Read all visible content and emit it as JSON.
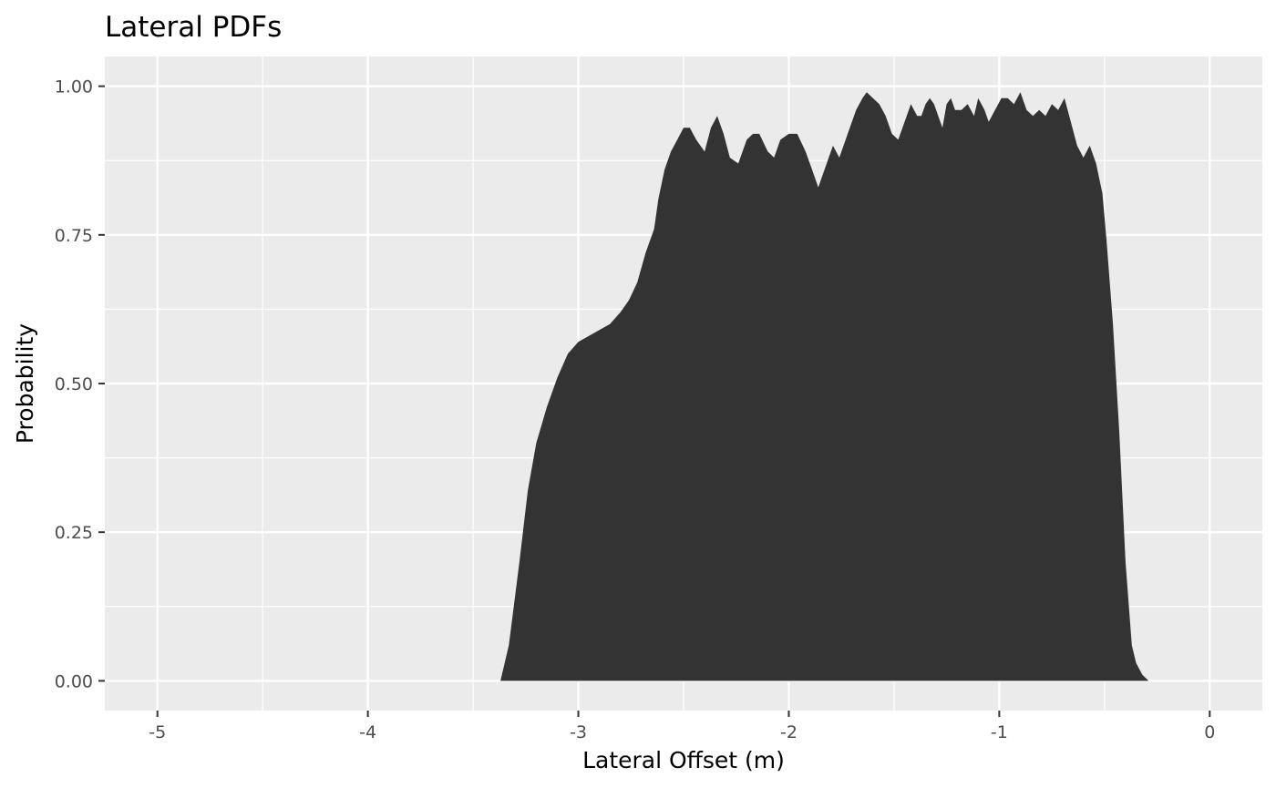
{
  "chart_data": {
    "type": "area",
    "title": "Lateral PDFs",
    "xlabel": "Lateral Offset (m)",
    "ylabel": "Probability",
    "xlim": [
      -5.25,
      0.25
    ],
    "ylim": [
      -0.05,
      1.05
    ],
    "x_ticks": [
      -5,
      -4,
      -3,
      -2,
      -1,
      0
    ],
    "x_tick_labels": [
      "-5",
      "-4",
      "-3",
      "-2",
      "-1",
      "0"
    ],
    "y_ticks": [
      0,
      0.25,
      0.5,
      0.75,
      1.0
    ],
    "y_tick_labels": [
      "0.00",
      "0.25",
      "0.50",
      "0.75",
      "1.00"
    ],
    "grid": true,
    "legend": "none",
    "colors": {
      "panel": "#ebebeb",
      "grid_major": "#ffffff",
      "fill": "#333333"
    },
    "series": [
      {
        "x": [
          -3.37,
          -3.33,
          -3.28,
          -3.24,
          -3.2,
          -3.15,
          -3.1,
          -3.05,
          -3.0,
          -2.95,
          -2.9,
          -2.85,
          -2.8,
          -2.76,
          -2.72,
          -2.68,
          -2.64,
          -2.62,
          -2.59,
          -2.56,
          -2.53,
          -2.5,
          -2.47,
          -2.44,
          -2.4,
          -2.37,
          -2.34,
          -2.31,
          -2.28,
          -2.24,
          -2.2,
          -2.17,
          -2.14,
          -2.1,
          -2.07,
          -2.04,
          -2.0,
          -1.96,
          -1.92,
          -1.89,
          -1.86,
          -1.82,
          -1.79,
          -1.76,
          -1.74,
          -1.71,
          -1.68,
          -1.65,
          -1.63,
          -1.6,
          -1.57,
          -1.54,
          -1.51,
          -1.48,
          -1.45,
          -1.42,
          -1.39,
          -1.37,
          -1.35,
          -1.33,
          -1.31,
          -1.29,
          -1.27,
          -1.25,
          -1.23,
          -1.21,
          -1.18,
          -1.15,
          -1.12,
          -1.1,
          -1.07,
          -1.05,
          -1.02,
          -0.99,
          -0.96,
          -0.93,
          -0.9,
          -0.87,
          -0.84,
          -0.81,
          -0.78,
          -0.75,
          -0.72,
          -0.69,
          -0.66,
          -0.63,
          -0.6,
          -0.57,
          -0.54,
          -0.51,
          -0.49,
          -0.46,
          -0.43,
          -0.4,
          -0.37,
          -0.35,
          -0.32,
          -0.29,
          -0.27,
          -0.24,
          -0.21,
          -0.18,
          -0.15,
          -0.12,
          -0.1,
          -0.05
        ],
        "y": [
          0.0,
          0.06,
          0.2,
          0.32,
          0.4,
          0.46,
          0.51,
          0.55,
          0.57,
          0.58,
          0.59,
          0.6,
          0.62,
          0.64,
          0.67,
          0.72,
          0.76,
          0.81,
          0.86,
          0.89,
          0.91,
          0.93,
          0.93,
          0.91,
          0.89,
          0.93,
          0.95,
          0.92,
          0.88,
          0.87,
          0.91,
          0.92,
          0.92,
          0.89,
          0.88,
          0.91,
          0.92,
          0.92,
          0.89,
          0.86,
          0.83,
          0.87,
          0.9,
          0.88,
          0.9,
          0.93,
          0.96,
          0.98,
          0.99,
          0.98,
          0.97,
          0.95,
          0.92,
          0.91,
          0.94,
          0.97,
          0.95,
          0.95,
          0.97,
          0.98,
          0.97,
          0.95,
          0.93,
          0.97,
          0.98,
          0.96,
          0.96,
          0.97,
          0.95,
          0.98,
          0.96,
          0.94,
          0.96,
          0.98,
          0.98,
          0.97,
          0.99,
          0.96,
          0.95,
          0.96,
          0.95,
          0.97,
          0.96,
          0.98,
          0.94,
          0.9,
          0.88,
          0.9,
          0.87,
          0.82,
          0.74,
          0.6,
          0.42,
          0.2,
          0.06,
          0.03,
          0.01,
          0.0,
          0.0,
          0.0,
          0.0,
          0.0,
          0.0,
          0.0,
          0.0,
          0.0
        ]
      }
    ]
  }
}
